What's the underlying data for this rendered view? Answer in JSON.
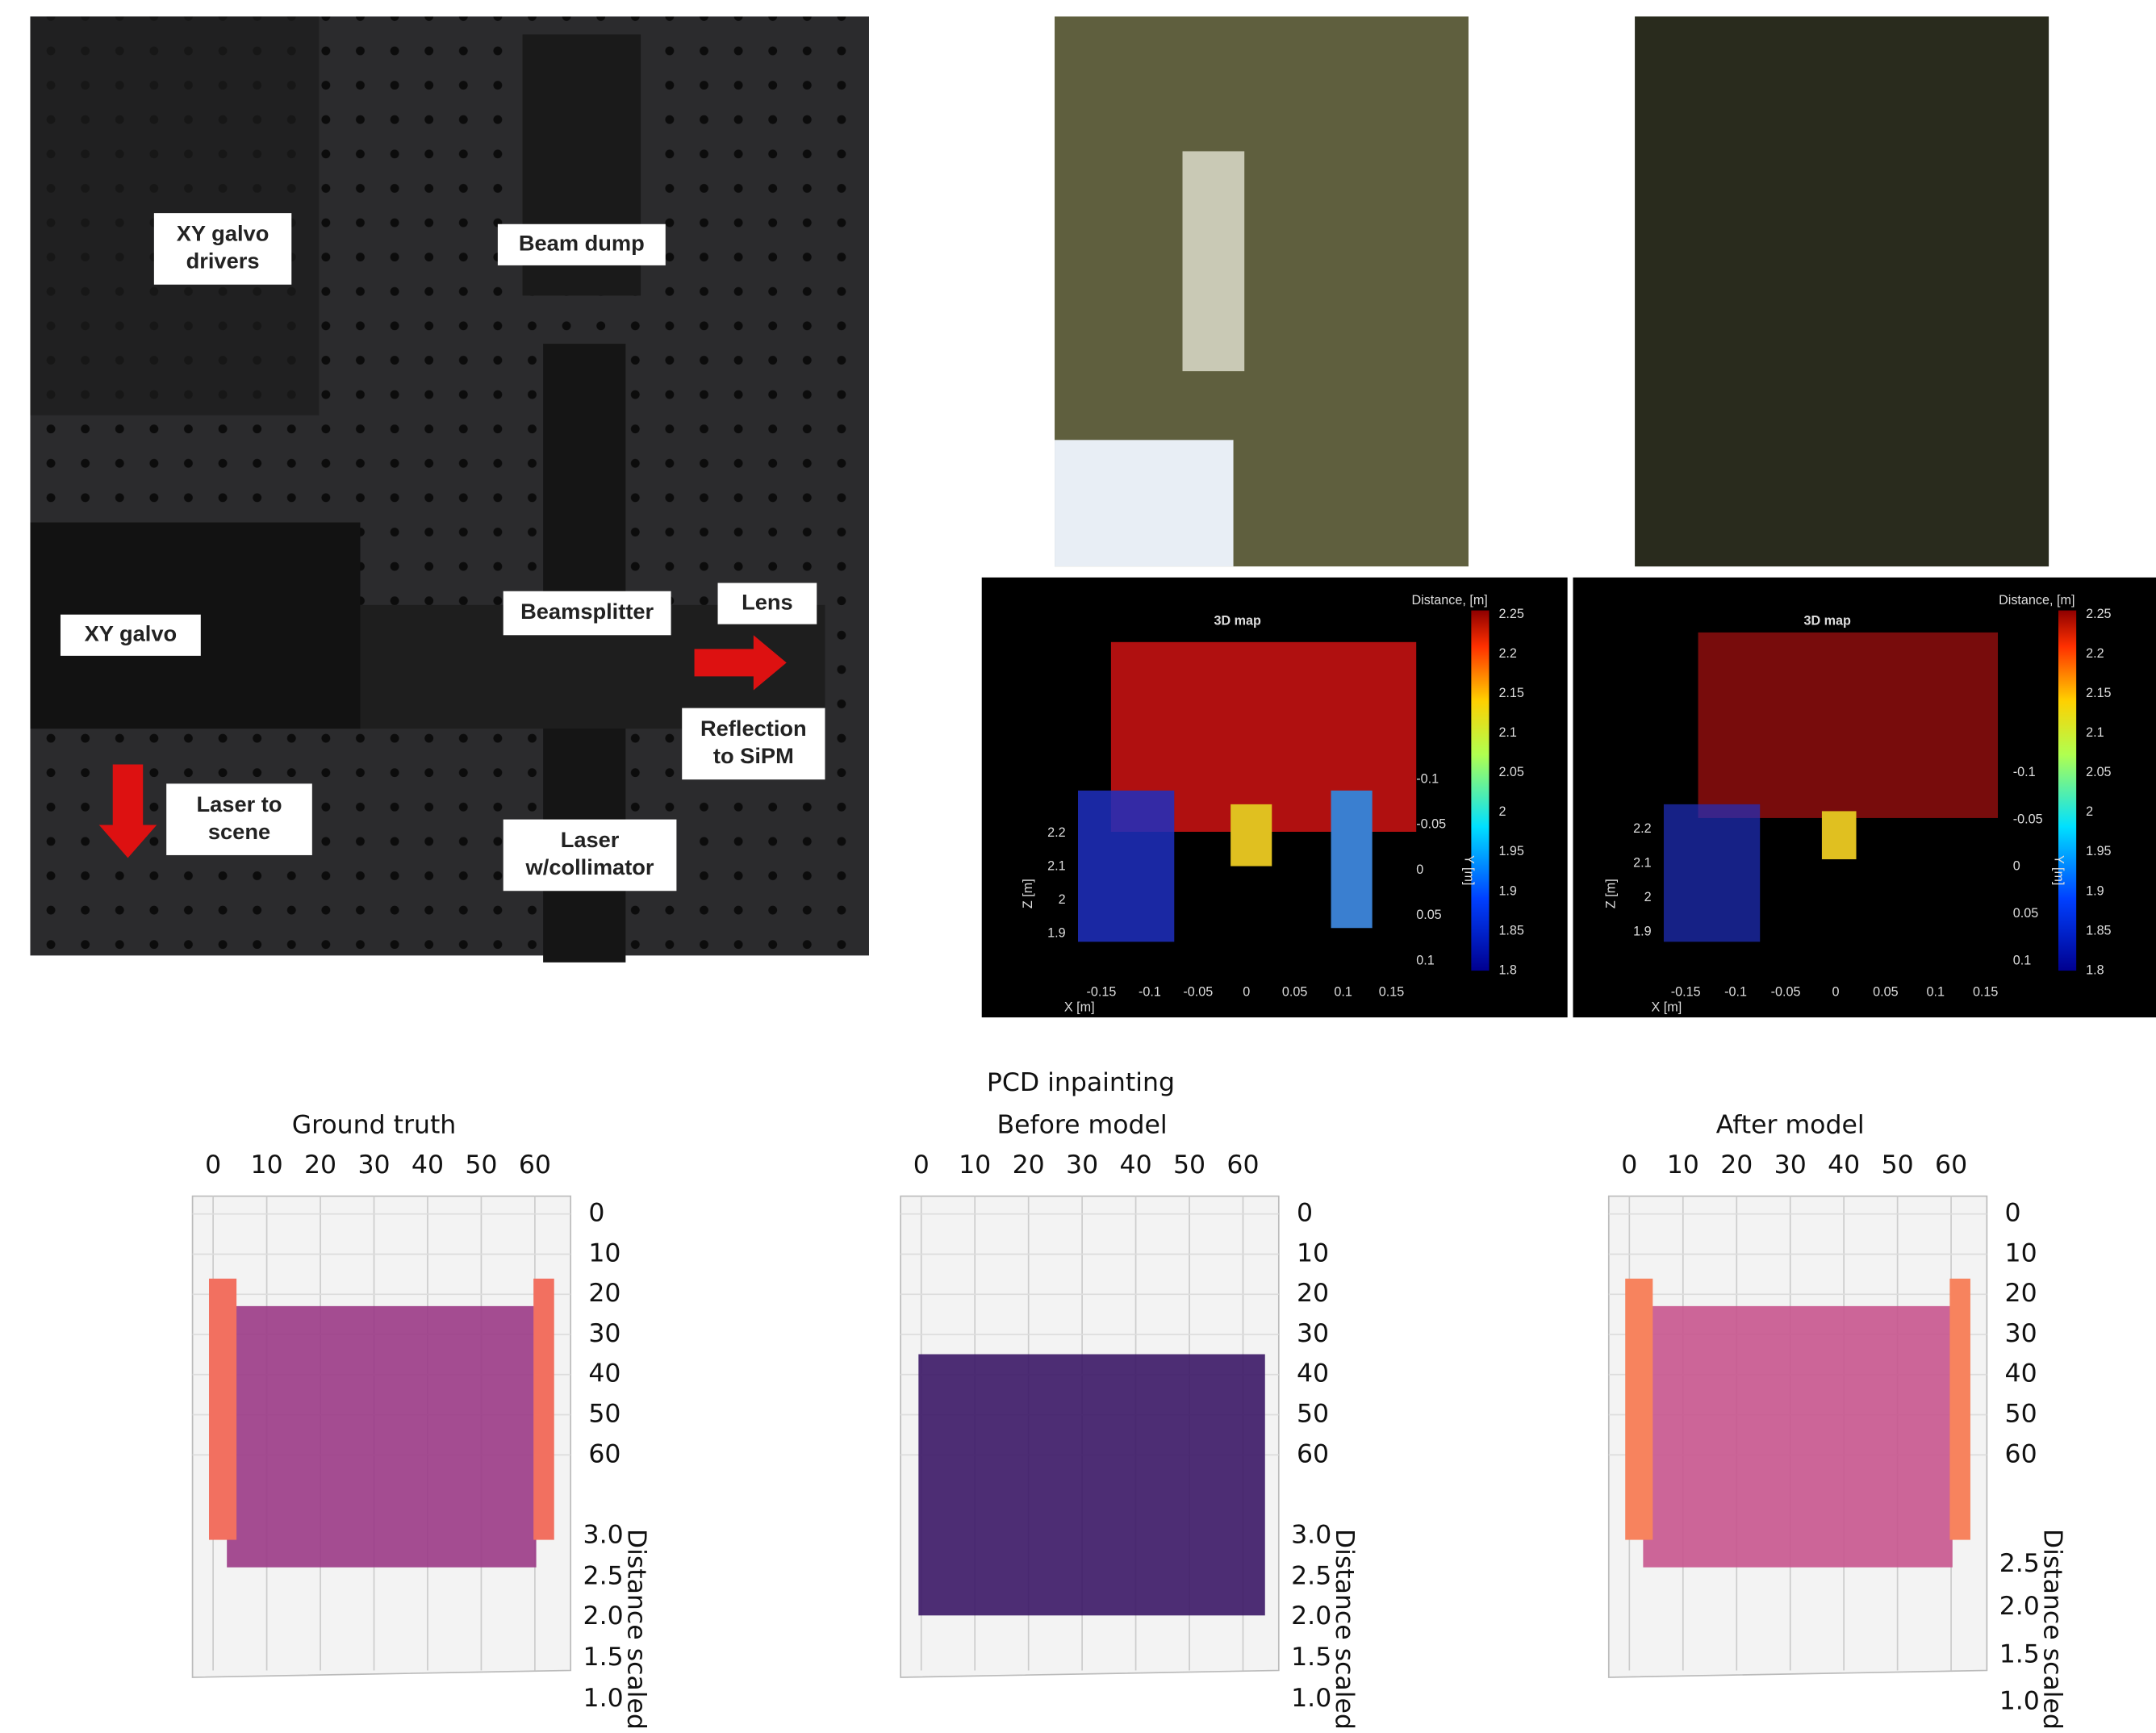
{
  "setup_photo": {
    "labels": [
      [
        "XY galvo",
        "drivers"
      ],
      [
        "Beam dump"
      ],
      [
        "Beamsplitter"
      ],
      [
        "Lens"
      ],
      [
        "XY galvo"
      ],
      [
        "Reflection",
        "to SiPM"
      ],
      [
        "Laser to",
        "scene"
      ],
      [
        "Laser",
        "w/collimator"
      ]
    ]
  },
  "maps_3d": [
    {
      "title": "3D map",
      "colorbar_label": "Distance, [m]",
      "colorbar_ticks": [
        2.25,
        2.2,
        2.15,
        2.1,
        2.05,
        2,
        1.95,
        1.9,
        1.85,
        1.8
      ],
      "x_label": "X [m]",
      "y_label": "Y [m]",
      "z_label": "Z [m]",
      "x_ticks": [
        -0.15,
        -0.1,
        -0.05,
        0,
        0.05,
        0.1,
        0.15
      ],
      "y_ticks": [
        -0.1,
        -0.05,
        0,
        0.05,
        0.1
      ],
      "z_ticks": [
        2.2,
        2.1,
        2,
        1.9
      ]
    },
    {
      "title": "3D map",
      "colorbar_label": "Distance, [m]",
      "colorbar_ticks": [
        2.25,
        2.2,
        2.15,
        2.1,
        2.05,
        2,
        1.95,
        1.9,
        1.85,
        1.8
      ],
      "x_label": "X [m]",
      "y_label": "Y [m]",
      "z_label": "Z [m]",
      "x_ticks": [
        -0.15,
        -0.1,
        -0.05,
        0,
        0.05,
        0.1,
        0.15
      ],
      "y_ticks": [
        -0.1,
        -0.05,
        0,
        0.05,
        0.1
      ],
      "z_ticks": [
        2.2,
        2.1,
        2,
        1.9
      ]
    }
  ],
  "pcd": {
    "title": "PCD inpainting",
    "panels": [
      {
        "title": "Ground truth",
        "x_ticks": [
          0,
          10,
          20,
          30,
          40,
          50,
          60
        ],
        "y_ticks": [
          0,
          10,
          20,
          30,
          40,
          50,
          60
        ],
        "z_ticks": [
          "3.0",
          "2.5",
          "2.0",
          "1.5",
          "1.0"
        ],
        "z_label": "Distance scaled"
      },
      {
        "title": "Before model",
        "x_ticks": [
          0,
          10,
          20,
          30,
          40,
          50,
          60
        ],
        "y_ticks": [
          0,
          10,
          20,
          30,
          40,
          50,
          60
        ],
        "z_ticks": [
          "3.0",
          "2.5",
          "2.0",
          "1.5",
          "1.0"
        ],
        "z_label": "Distance scaled"
      },
      {
        "title": "After model",
        "x_ticks": [
          0,
          10,
          20,
          30,
          40,
          50,
          60
        ],
        "y_ticks": [
          0,
          10,
          20,
          30,
          40,
          50,
          60
        ],
        "z_ticks": [
          "2.5",
          "2.0",
          "1.5",
          "1.0"
        ],
        "z_label": "Distance scaled"
      }
    ]
  }
}
